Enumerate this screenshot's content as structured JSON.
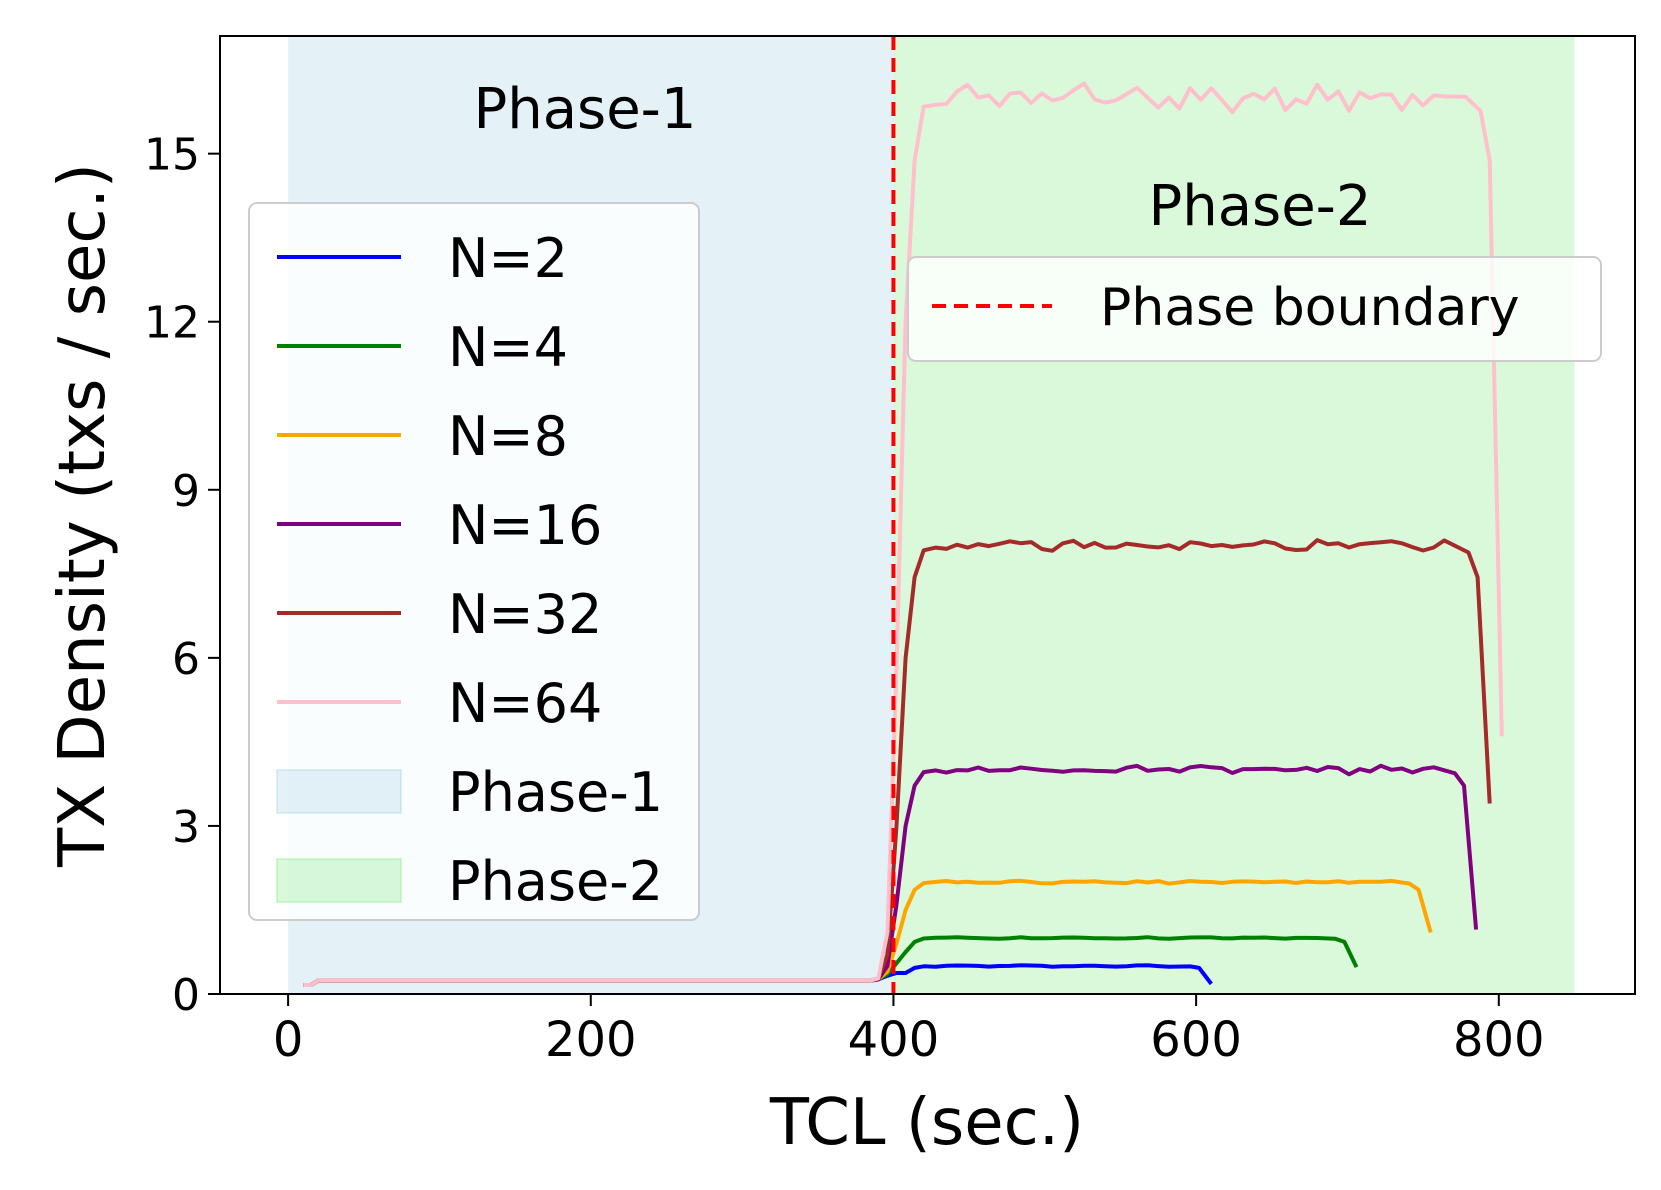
{
  "chart_data": {
    "type": "line",
    "xlabel": "TCL (sec.)",
    "ylabel": "TX Density (txs / sec.)",
    "xlim": [
      -45,
      890
    ],
    "ylim": [
      0,
      17.1
    ],
    "xticks": [
      0,
      200,
      400,
      600,
      800
    ],
    "yticks": [
      0,
      3,
      6,
      9,
      12,
      15
    ],
    "phases": [
      {
        "name": "Phase-1",
        "label": "Phase-1",
        "x0": 0,
        "x1": 400,
        "color": "#add8e6"
      },
      {
        "name": "Phase-2",
        "label": "Phase-2",
        "x0": 400,
        "x1": 850,
        "color": "#90ee90"
      }
    ],
    "boundary": {
      "x": 400,
      "label": "Phase boundary",
      "color": "#ff0000"
    },
    "series": [
      {
        "name": "N=2",
        "color": "#0000ff",
        "level": 0.5,
        "drop_end": 610,
        "end_value": 0.18,
        "wiggle": 0.01
      },
      {
        "name": "N=4",
        "color": "#008000",
        "level": 1.0,
        "drop_end": 706,
        "end_value": 0.48,
        "wiggle": 0.01
      },
      {
        "name": "N=8",
        "color": "#ffa500",
        "level": 2.0,
        "drop_end": 755,
        "end_value": 1.1,
        "wiggle": 0.02
      },
      {
        "name": "N=16",
        "color": "#800080",
        "level": 4.0,
        "drop_end": 785,
        "end_value": 1.15,
        "wiggle": 0.05
      },
      {
        "name": "N=32",
        "color": "#a52a2a",
        "level": 8.0,
        "drop_end": 794,
        "end_value": 3.4,
        "wiggle": 0.07
      },
      {
        "name": "N=64",
        "color": "#ffc0cb",
        "level": 16.0,
        "drop_end": 802,
        "end_value": 4.6,
        "wiggle": 0.18
      }
    ],
    "phase1_level": 0.24
  }
}
